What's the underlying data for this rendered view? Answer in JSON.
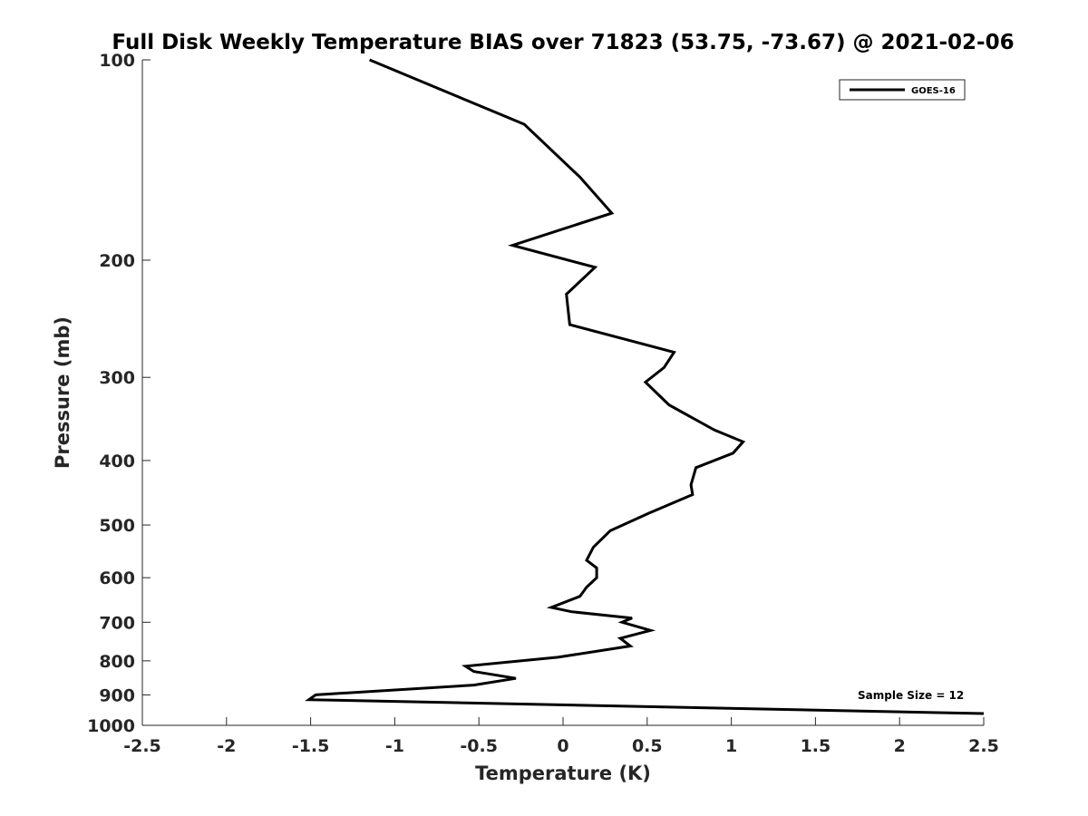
{
  "chart_data": {
    "type": "line",
    "title": "Full Disk Weekly Temperature BIAS over 71823 (53.75, -73.67) @ 2021-02-06",
    "xlabel": "Temperature (K)",
    "ylabel": "Pressure (mb)",
    "xlim": [
      -2.5,
      2.5
    ],
    "ylim": [
      100,
      1000
    ],
    "y_scale": "log",
    "y_reversed": true,
    "x_ticks": [
      "-2.5",
      "-2",
      "-1.5",
      "-1",
      "-0.5",
      "0",
      "0.5",
      "1",
      "1.5",
      "2",
      "2.5"
    ],
    "y_ticks": [
      "100",
      "200",
      "300",
      "400",
      "500",
      "600",
      "700",
      "800",
      "900",
      "1000"
    ],
    "grid": false,
    "legend_position": "top-right",
    "annotation": "Sample Size = 12",
    "series": [
      {
        "name": "GOES-16",
        "color": "#000000",
        "x": [
          -1.15,
          -0.23,
          0.1,
          0.29,
          -0.3,
          0.19,
          0.02,
          0.04,
          0.66,
          0.6,
          0.49,
          0.63,
          0.9,
          1.07,
          1.01,
          0.79,
          0.76,
          0.77,
          0.51,
          0.28,
          0.18,
          0.14,
          0.2,
          0.2,
          0.14,
          0.1,
          -0.07,
          0.05,
          0.41,
          0.35,
          0.52,
          0.34,
          0.4,
          -0.03,
          -0.58,
          -0.53,
          -0.28,
          -0.53,
          -1.47,
          -1.51,
          2.5
        ],
        "y": [
          100,
          125,
          150,
          170,
          190,
          205,
          225,
          250,
          275,
          290,
          305,
          330,
          360,
          375,
          390,
          410,
          435,
          450,
          480,
          510,
          540,
          565,
          580,
          600,
          620,
          640,
          665,
          675,
          690,
          700,
          720,
          740,
          760,
          790,
          815,
          830,
          850,
          870,
          900,
          915,
          960
        ]
      }
    ]
  }
}
